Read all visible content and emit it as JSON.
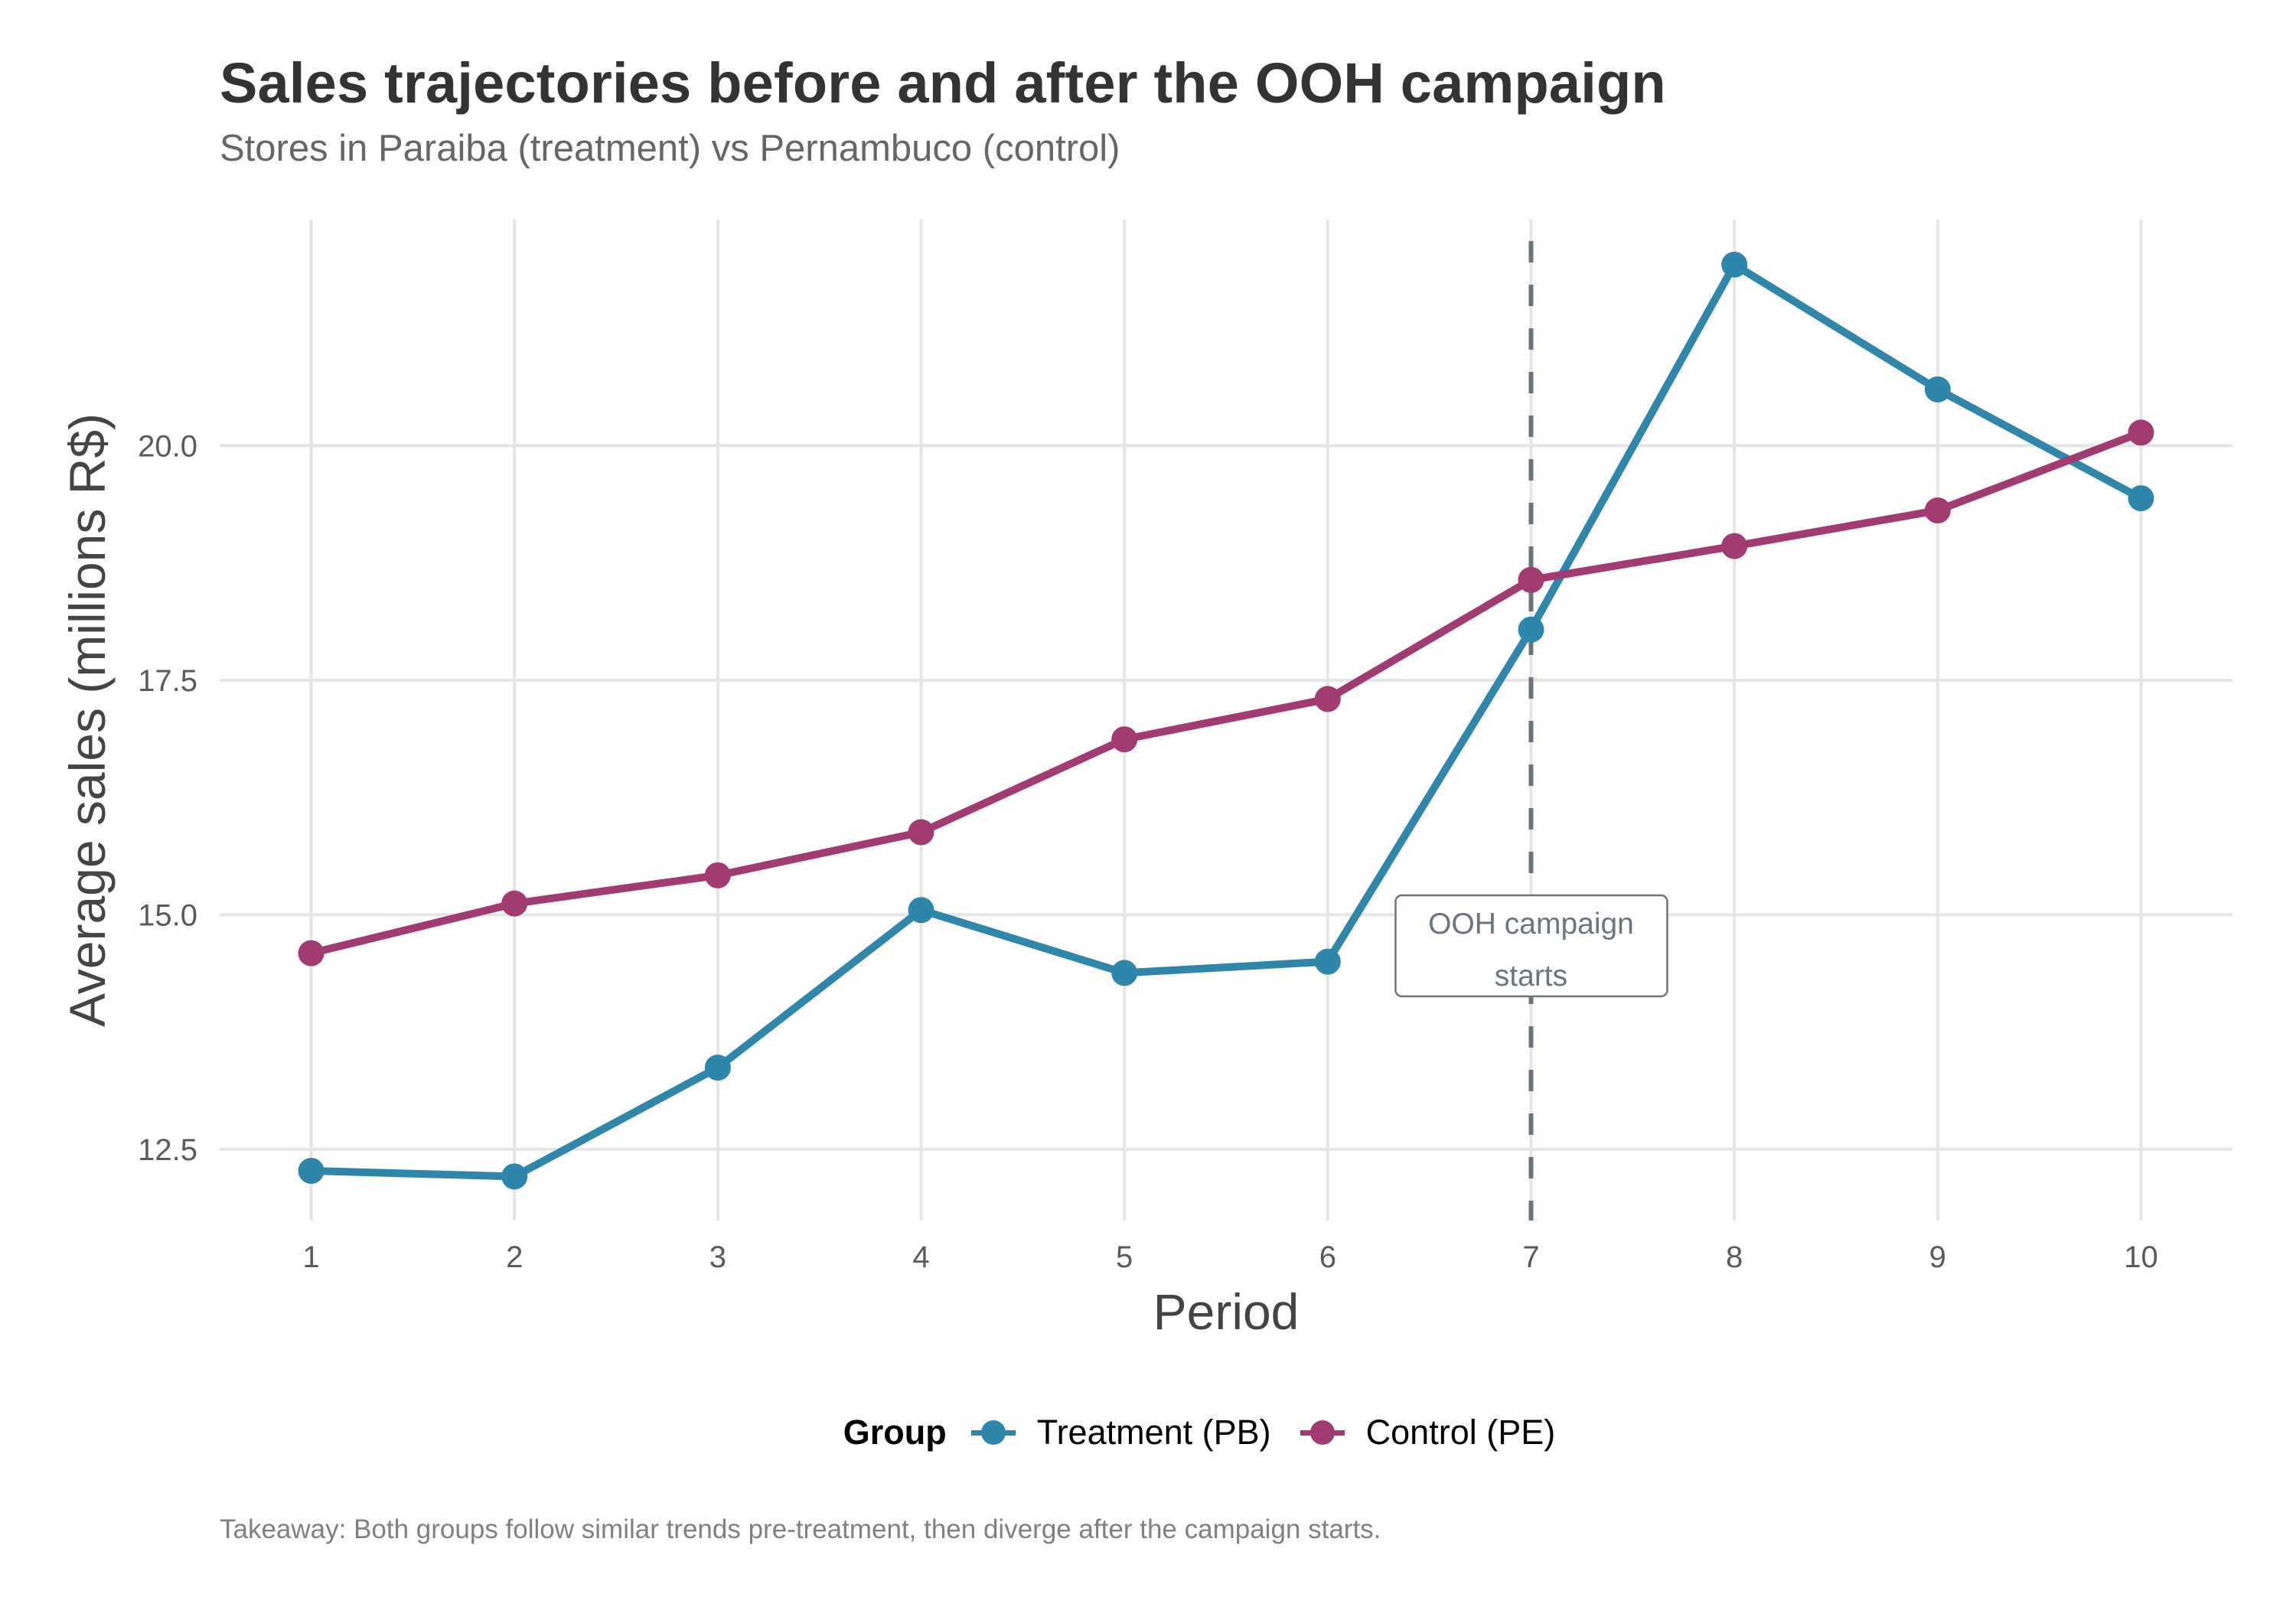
{
  "title": "Sales trajectories before and after the OOH campaign",
  "subtitle": "Stores in Paraiba (treatment) vs Pernambuco (control)",
  "caption": "Takeaway: Both groups follow similar trends pre-treatment, then diverge after the campaign starts.",
  "colors": {
    "treatment": "#2E86AB",
    "control": "#A23B72",
    "vline": "#6C757D",
    "grid": "#E5E5E5"
  },
  "legend": {
    "title": "Group",
    "items": [
      {
        "label": "Treatment (PB)",
        "series": "treatment"
      },
      {
        "label": "Control (PE)",
        "series": "control"
      }
    ]
  },
  "chart_data": {
    "type": "line",
    "title": "Sales trajectories before and after the OOH campaign",
    "subtitle": "Stores in Paraiba (treatment) vs Pernambuco (control)",
    "xlabel": "Period",
    "ylabel": "Average sales (millions R$)",
    "x": [
      1,
      2,
      3,
      4,
      5,
      6,
      7,
      8,
      9,
      10
    ],
    "x_ticks": [
      "1",
      "2",
      "3",
      "4",
      "5",
      "6",
      "7",
      "8",
      "9",
      "10"
    ],
    "y_ticks": [
      12.5,
      15.0,
      17.5,
      20.0
    ],
    "y_tick_labels": [
      "12.5",
      "15.0",
      "17.5",
      "20.0"
    ],
    "xlim": [
      0.55,
      10.45
    ],
    "ylim": [
      11.74,
      22.41
    ],
    "grid": true,
    "legend_position": "bottom",
    "series": [
      {
        "name": "Treatment (PB)",
        "key": "treatment",
        "values": [
          12.27,
          12.21,
          13.37,
          15.05,
          14.38,
          14.5,
          18.04,
          21.93,
          20.6,
          19.44
        ]
      },
      {
        "name": "Control (PE)",
        "key": "control",
        "values": [
          14.59,
          15.12,
          15.42,
          15.88,
          16.87,
          17.3,
          18.57,
          18.93,
          19.31,
          20.14
        ]
      }
    ],
    "annotations": [
      {
        "type": "vline",
        "x": 7,
        "style": "dashed"
      },
      {
        "type": "label",
        "x": 7,
        "y": 14.7,
        "lines": [
          "OOH campaign",
          "starts"
        ]
      }
    ]
  }
}
